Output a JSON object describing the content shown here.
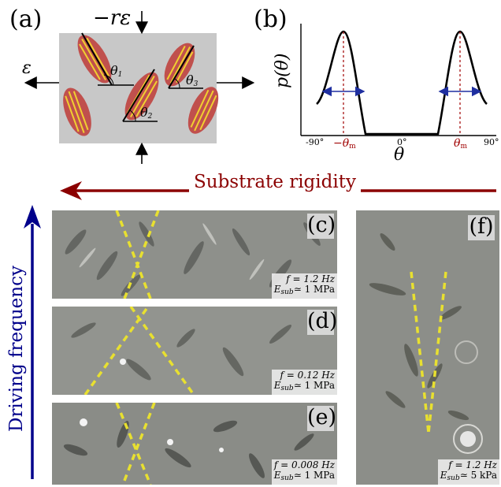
{
  "panels": {
    "a": {
      "label": "(a)",
      "strain_top": "−rε",
      "strain_side": "ε",
      "angles": [
        "θ",
        "θ",
        "θ"
      ],
      "angle_subs": [
        "1",
        "2",
        "3"
      ]
    },
    "b": {
      "label": "(b)",
      "ylabel": "p(θ)",
      "xlabel": "θ",
      "ticks": [
        "-90°",
        "0°",
        "90°"
      ],
      "theta_m_neg": "−θ",
      "theta_m_pos": "θ",
      "m_sub": "m"
    },
    "rigidity_label": "Substrate rigidity",
    "frequency_label": "Driving frequency",
    "c": {
      "tag": "(c)",
      "f": "f = 1.2 Hz",
      "e_pre": "E",
      "e_sub": "sub",
      "e_val": "≃ 1 MPa"
    },
    "d": {
      "tag": "(d)",
      "f": "f = 0.12 Hz",
      "e_pre": "E",
      "e_sub": "sub",
      "e_val": "≃ 1 MPa"
    },
    "e": {
      "tag": "(e)",
      "f": "f = 0.008 Hz",
      "e_pre": "E",
      "e_sub": "sub",
      "e_val": "≃ 1 MPa"
    },
    "f": {
      "tag": "(f)",
      "f": "f = 1.2 Hz",
      "e_pre": "E",
      "e_sub": "sub",
      "e_val": "≃ 5 kPa"
    }
  },
  "colors": {
    "arrow_red": "#8b0000",
    "arrow_blue": "#00008b",
    "cell_fill": "#c0504d",
    "fiber": "#f0d030",
    "dashed": "#e8e030",
    "theta_m_red": "#a00000",
    "spread_arrow": "#1f2fa0"
  }
}
